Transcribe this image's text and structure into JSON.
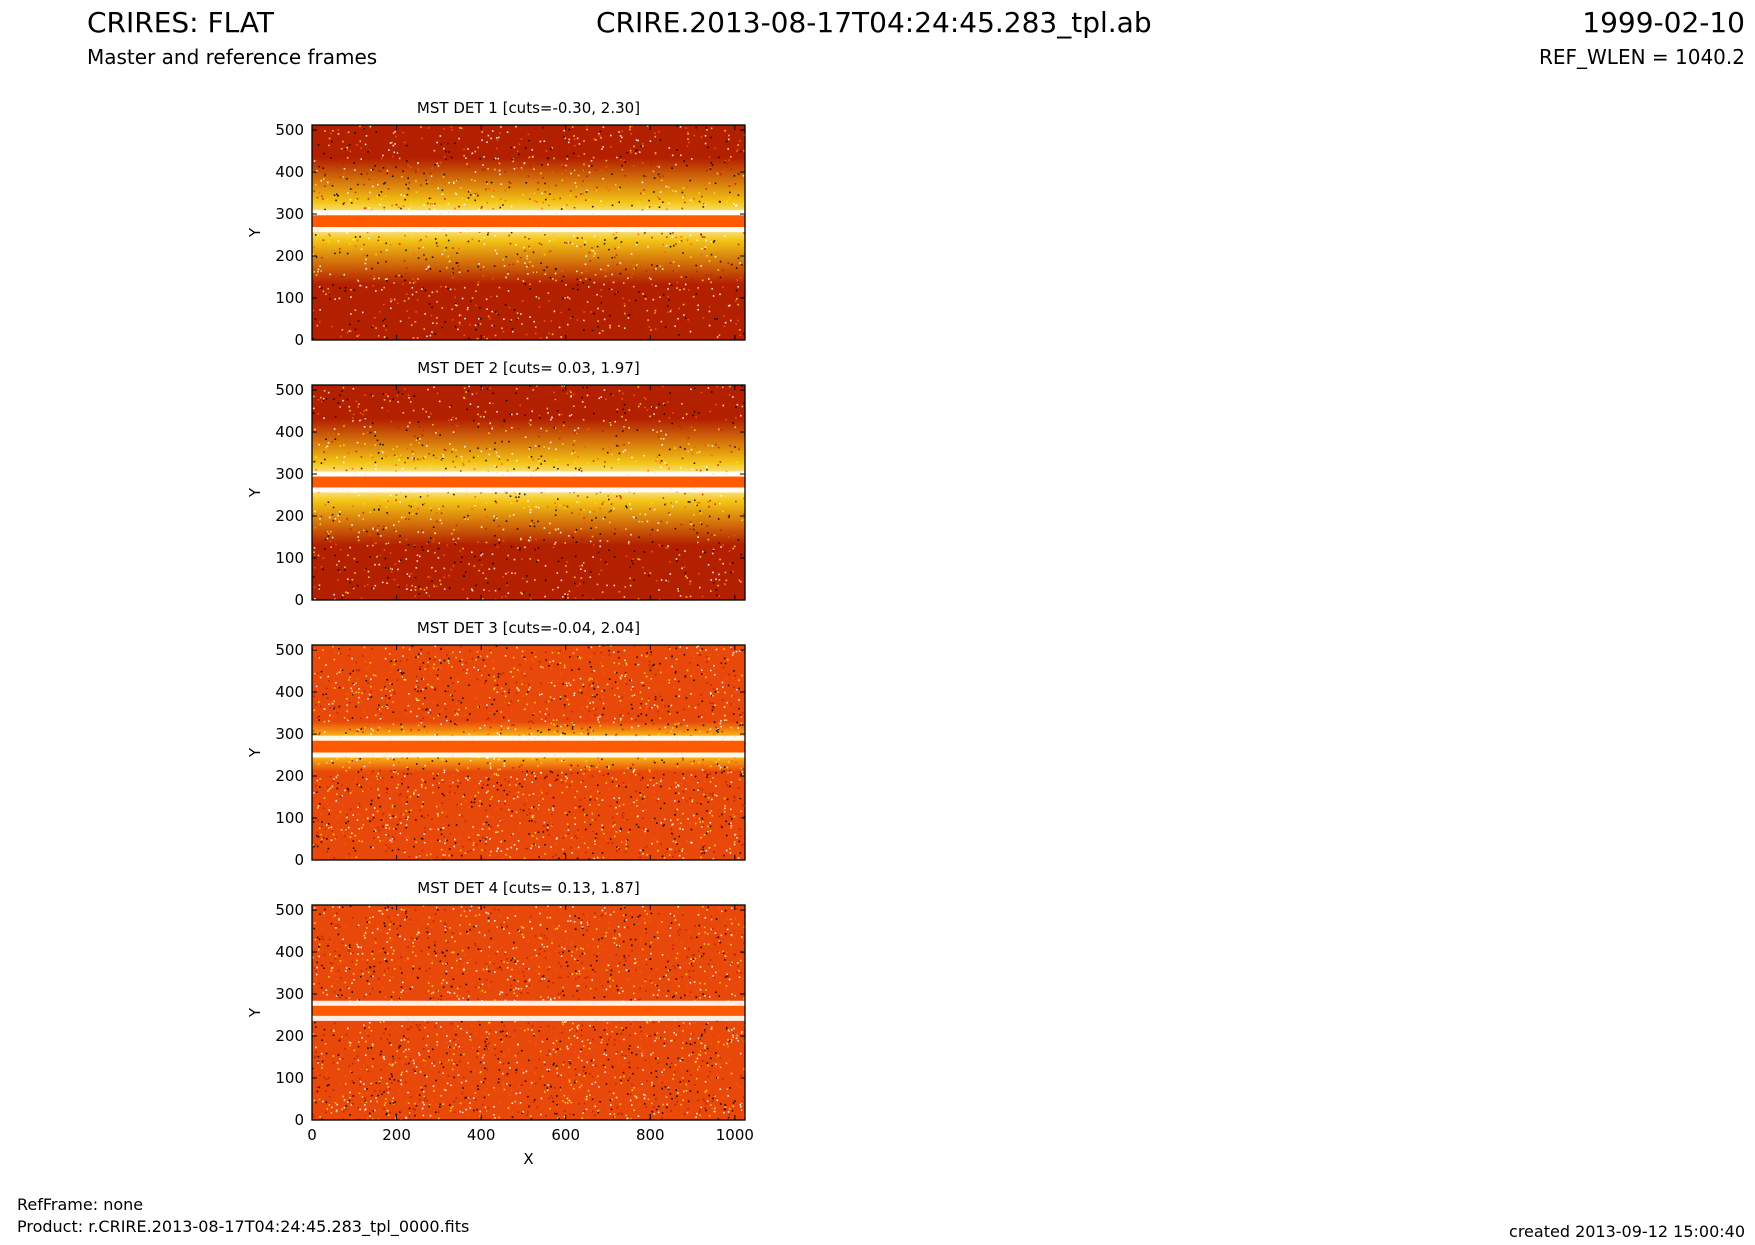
{
  "header": {
    "title_left": "CRIRES: FLAT",
    "title_center": "CRIRE.2013-08-17T04:24:45.283_tpl.ab",
    "title_right": "1999-02-10",
    "subtitle_left": "Master and reference frames",
    "subtitle_right": "REF_WLEN = 1040.2"
  },
  "footer": {
    "refframe": "RefFrame: none",
    "product": "Product: r.CRIRE.2013-08-17T04:24:45.283_tpl_0000.fits",
    "created": "created 2013-09-12 15:00:40"
  },
  "colors": {
    "band": "#ff5a00",
    "dark": "#b32000",
    "mid": "#e8480a",
    "bright": "#ffe21a",
    "white": "#ffffff"
  },
  "chart_data": [
    {
      "type": "heatmap",
      "title": "MST DET 1 [cuts=-0.30, 2.30]",
      "xlabel": "",
      "ylabel": "Y",
      "xlim": [
        0,
        1024
      ],
      "ylim": [
        0,
        512
      ],
      "yticks": [
        0,
        100,
        200,
        300,
        400,
        500
      ],
      "xticks": [
        0,
        200,
        400,
        600,
        800,
        1000
      ],
      "cuts": [
        -0.3,
        2.3
      ],
      "band": {
        "center": 283,
        "width": 28
      },
      "halo_width": 150,
      "background": "dark"
    },
    {
      "type": "heatmap",
      "title": "MST DET 2 [cuts= 0.03, 1.97]",
      "xlabel": "",
      "ylabel": "Y",
      "xlim": [
        0,
        1024
      ],
      "ylim": [
        0,
        512
      ],
      "yticks": [
        0,
        100,
        200,
        300,
        400,
        500
      ],
      "xticks": [
        0,
        200,
        400,
        600,
        800,
        1000
      ],
      "cuts": [
        0.03,
        1.97
      ],
      "band": {
        "center": 281,
        "width": 26
      },
      "halo_width": 150,
      "background": "dark"
    },
    {
      "type": "heatmap",
      "title": "MST DET 3 [cuts=-0.04, 2.04]",
      "xlabel": "",
      "ylabel": "Y",
      "xlim": [
        0,
        1024
      ],
      "ylim": [
        0,
        512
      ],
      "yticks": [
        0,
        100,
        200,
        300,
        400,
        500
      ],
      "xticks": [
        0,
        200,
        400,
        600,
        800,
        1000
      ],
      "cuts": [
        -0.04,
        2.04
      ],
      "band": {
        "center": 270,
        "width": 28
      },
      "halo_width": 60,
      "background": "speckled"
    },
    {
      "type": "heatmap",
      "title": "MST DET 4 [cuts= 0.13, 1.87]",
      "xlabel": "X",
      "ylabel": "Y",
      "xlim": [
        0,
        1024
      ],
      "ylim": [
        0,
        512
      ],
      "yticks": [
        0,
        100,
        200,
        300,
        400,
        500
      ],
      "xticks": [
        0,
        200,
        400,
        600,
        800,
        1000
      ],
      "cuts": [
        0.13,
        1.87
      ],
      "band": {
        "center": 260,
        "width": 24
      },
      "halo_width": 20,
      "background": "speckled"
    }
  ]
}
